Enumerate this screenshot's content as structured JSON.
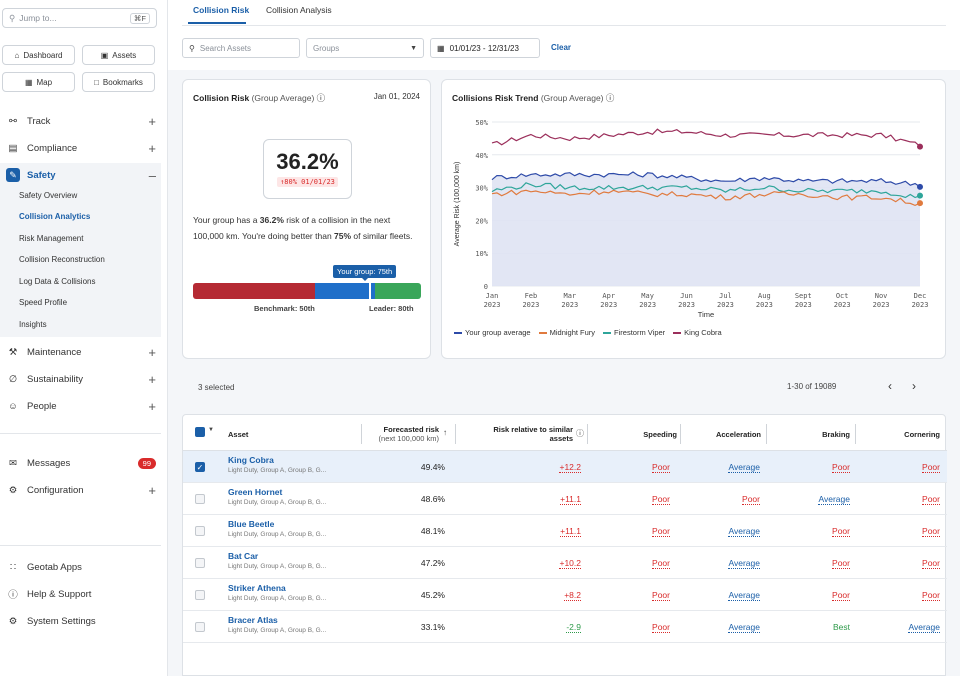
{
  "sidebar": {
    "search_placeholder": "Jump to...",
    "search_shortcut": "⌘F",
    "quick": [
      {
        "label": "Dashboard"
      },
      {
        "label": "Assets"
      },
      {
        "label": "Map"
      },
      {
        "label": "Bookmarks"
      }
    ],
    "nav": [
      {
        "label": "Track"
      },
      {
        "label": "Compliance"
      },
      {
        "label": "Safety"
      },
      {
        "label": "Maintenance"
      },
      {
        "label": "Sustainability"
      },
      {
        "label": "People"
      },
      {
        "label": "Messages"
      },
      {
        "label": "Configuration"
      },
      {
        "label": "Geotab Apps"
      },
      {
        "label": "Help & Support"
      },
      {
        "label": "System Settings"
      }
    ],
    "safety_sub": [
      "Safety Overview",
      "Collision Analytics",
      "Risk Management",
      "Collision Reconstruction",
      "Log Data & Collisions",
      "Speed Profile",
      "Insights"
    ],
    "messages_badge": "99"
  },
  "tabs": [
    "Collision Risk",
    "Collision Analysis"
  ],
  "filters": {
    "search_placeholder": "Search Assets",
    "groups_placeholder": "Groups",
    "date_range": "01/01/23 - 12/31/23",
    "clear": "Clear"
  },
  "risk_card": {
    "title": "Collision Risk",
    "title_suffix": "(Group Average)",
    "date": "Jan 01, 2024",
    "value": "36.2%",
    "change": "↑80% 01/01/23",
    "desc_pre": "Your group has a ",
    "desc_val": "36.2%",
    "desc_mid": " risk of a collision in the next 100,000 km. You're doing better than ",
    "desc_pct": "75%",
    "desc_post": " of similar fleets.",
    "tooltip": "Your group: 75th",
    "benchmark": "Benchmark: 50th",
    "leader": "Leader: 80th",
    "group_percentile": 75,
    "colors": {
      "red": "#b52a34",
      "blue": "#1f6fc9",
      "green": "#3aa65a"
    }
  },
  "trend_card": {
    "title": "Collisions Risk Trend",
    "title_suffix": "(Group Average)"
  },
  "chart_data": {
    "type": "line",
    "ylabel": "Average Risk (100,000 km)",
    "xlabel": "Time",
    "y_ticks": [
      "0",
      "10%",
      "20%",
      "30%",
      "40%",
      "50%"
    ],
    "x_ticks": [
      [
        "Jan",
        "2023"
      ],
      [
        "Feb",
        "2023"
      ],
      [
        "Mar",
        "2023"
      ],
      [
        "Apr",
        "2023"
      ],
      [
        "May",
        "2023"
      ],
      [
        "Jun",
        "2023"
      ],
      [
        "Jul",
        "2023"
      ],
      [
        "Aug",
        "2023"
      ],
      [
        "Sept",
        "2023"
      ],
      [
        "Oct",
        "2023"
      ],
      [
        "Nov",
        "2023"
      ],
      [
        "Dec",
        "2023"
      ]
    ],
    "ylim": [
      0,
      50
    ],
    "x": [
      "2023-01",
      "2023-02",
      "2023-03",
      "2023-04",
      "2023-05",
      "2023-06",
      "2023-07",
      "2023-08",
      "2023-09",
      "2023-10",
      "2023-11",
      "2023-12"
    ],
    "series": [
      {
        "name": "King Cobra",
        "color": "#9b2f5b",
        "values": [
          43,
          46,
          45,
          46,
          47,
          47,
          46,
          46,
          46,
          46,
          46,
          43
        ]
      },
      {
        "name": "Your group average",
        "color": "#2d4aa8",
        "values": [
          33,
          34,
          34,
          34,
          34,
          33,
          32,
          33,
          32,
          32,
          32,
          31
        ]
      },
      {
        "name": "Firestorm Viper",
        "color": "#2ea59a",
        "values": [
          29,
          31,
          30,
          30,
          30,
          30,
          29,
          30,
          29,
          29,
          29,
          27
        ]
      },
      {
        "name": "Midnight Fury",
        "color": "#e07a3e",
        "values": [
          28,
          29,
          28,
          29,
          28,
          28,
          27,
          28,
          28,
          27,
          27,
          25
        ]
      }
    ],
    "legend": [
      "Your group average",
      "Midnight Fury",
      "Firestorm Viper",
      "King Cobra"
    ],
    "area_under": "Your group average"
  },
  "table": {
    "selected_text": "3 selected",
    "pager": "1-30 of 19089",
    "headers": {
      "asset": "Asset",
      "forecast": "Forecasted risk",
      "forecast_sub": "(next 100,000 km)",
      "relative": "Risk relative to similar",
      "relative2": "assets",
      "speeding": "Speeding",
      "acceleration": "Acceleration",
      "braking": "Braking",
      "cornering": "Cornering"
    },
    "rows": [
      {
        "name": "King Cobra",
        "sub": "Light Duty, Group A, Group B, G...",
        "risk": "49.4%",
        "rel": "+12.2",
        "speeding": "Poor",
        "accel": "Average",
        "braking": "Poor",
        "cornering": "Poor",
        "selected": true
      },
      {
        "name": "Green Hornet",
        "sub": "Light Duty, Group A, Group B, G...",
        "risk": "48.6%",
        "rel": "+11.1",
        "speeding": "Poor",
        "accel": "Poor",
        "braking": "Average",
        "cornering": "Poor",
        "selected": false
      },
      {
        "name": "Blue Beetle",
        "sub": "Light Duty, Group A, Group B, G...",
        "risk": "48.1%",
        "rel": "+11.1",
        "speeding": "Poor",
        "accel": "Average",
        "braking": "Poor",
        "cornering": "Poor",
        "selected": false
      },
      {
        "name": "Bat Car",
        "sub": "Light Duty, Group A, Group B, G...",
        "risk": "47.2%",
        "rel": "+10.2",
        "speeding": "Poor",
        "accel": "Average",
        "braking": "Poor",
        "cornering": "Poor",
        "selected": false
      },
      {
        "name": "Striker Athena",
        "sub": "Light Duty, Group A, Group B, G...",
        "risk": "45.2%",
        "rel": "+8.2",
        "speeding": "Poor",
        "accel": "Average",
        "braking": "Poor",
        "cornering": "Poor",
        "selected": false
      },
      {
        "name": "Bracer Atlas",
        "sub": "Light Duty, Group A, Group B, G...",
        "risk": "33.1%",
        "rel": "-2.9",
        "speeding": "Poor",
        "accel": "Average",
        "braking": "Best",
        "cornering": "Average",
        "selected": false
      }
    ]
  }
}
